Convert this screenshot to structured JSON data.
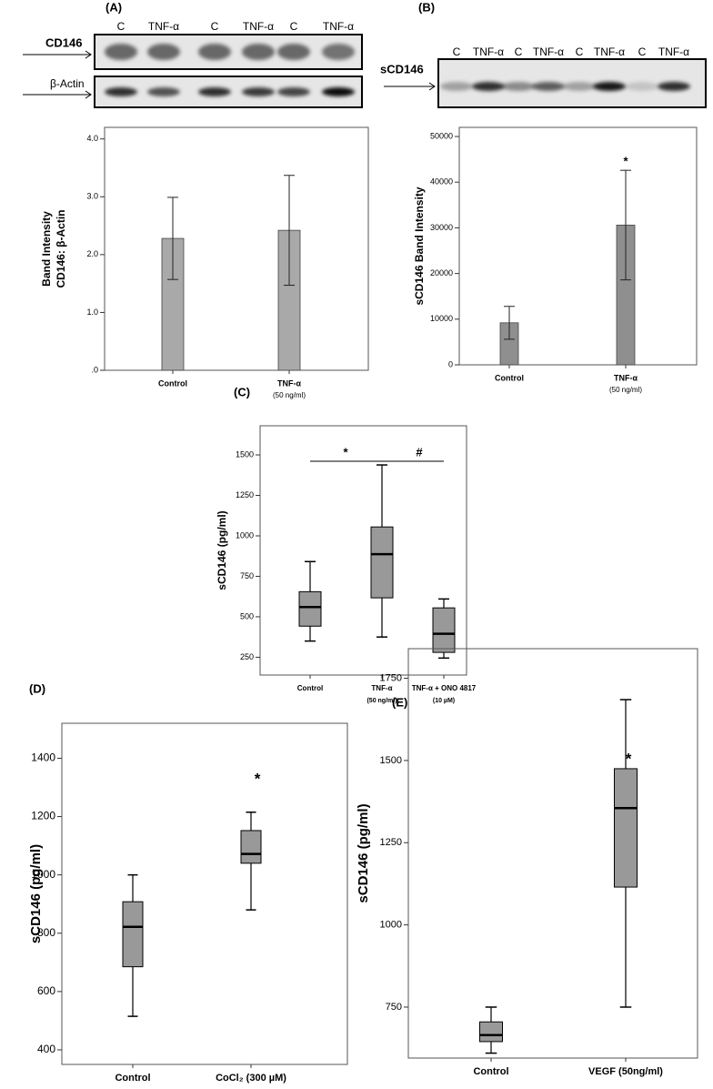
{
  "chart_data": [
    {
      "type": "bar",
      "title": "(A)",
      "blot": {
        "lanes": [
          "C",
          "TNF-α",
          "C",
          "TNF-α",
          "C",
          "TNF-α"
        ],
        "rows": [
          "CD146",
          "β-Actin"
        ]
      },
      "ylabel": [
        "Band Intensity",
        "CD146: β-Actin"
      ],
      "categories": [
        "Control",
        "TNF-α"
      ],
      "category_notes": [
        null,
        "(50 ng/ml)"
      ],
      "values": [
        2.28,
        2.42
      ],
      "errors": [
        0.71,
        0.95
      ],
      "color": "#a9a9a9",
      "ylim": [
        0,
        4.2
      ],
      "yticks": [
        {
          "value": 0,
          "label": ".0"
        },
        {
          "value": 1,
          "label": "1.0"
        },
        {
          "value": 2,
          "label": "2.0"
        },
        {
          "value": 3,
          "label": "3.0"
        },
        {
          "value": 4,
          "label": "4.0"
        }
      ]
    },
    {
      "type": "bar",
      "title": "(B)",
      "blot": {
        "lanes": [
          "C",
          "TNF-α",
          "C",
          "TNF-α",
          "C",
          "TNF-α",
          "C",
          "TNF-α"
        ],
        "rows": [
          "sCD146"
        ]
      },
      "ylabel": [
        "sCD146 Band Intensity"
      ],
      "categories": [
        "Control",
        "TNF-α"
      ],
      "category_notes": [
        null,
        "(50 ng/ml)"
      ],
      "values": [
        9200,
        30600
      ],
      "errors": [
        3600,
        12000
      ],
      "color": "#8f8f8f",
      "ylim": [
        0,
        52000
      ],
      "yticks": [
        0,
        10000,
        20000,
        30000,
        40000,
        50000
      ],
      "annotations": [
        {
          "text": "*"
        }
      ]
    },
    {
      "type": "box",
      "title": "(C)",
      "ylabel": [
        "sCD146 (pg/ml)"
      ],
      "categories": [
        "Control",
        "TNF-α",
        "TNF-α + ONO 4817"
      ],
      "category_notes": [
        null,
        "(50 ng/ml)",
        "(10 µM)"
      ],
      "min": [
        350,
        375,
        245
      ],
      "q1": [
        442,
        617,
        280
      ],
      "median": [
        560,
        887,
        395
      ],
      "q3": [
        655,
        1055,
        555
      ],
      "max": [
        841,
        1438,
        610
      ],
      "color": "#999999",
      "ylim": [
        140,
        1680
      ],
      "yticks": [
        250,
        500,
        750,
        1000,
        1250,
        1500
      ],
      "annotations": [
        {
          "text": "*"
        },
        {
          "text": "#"
        }
      ]
    },
    {
      "type": "box",
      "title": "(D)",
      "ylabel": [
        "sCD146 (pg/ml)"
      ],
      "categories": [
        "Control",
        "CoCl₂ (300 µM)"
      ],
      "min": [
        515,
        880
      ],
      "q1": [
        685,
        1040
      ],
      "median": [
        822,
        1072
      ],
      "q3": [
        908,
        1152
      ],
      "max": [
        1000,
        1215
      ],
      "color": "#999999",
      "ylim": [
        350,
        1520
      ],
      "yticks": [
        400,
        600,
        800,
        1000,
        1200,
        1400
      ],
      "annotations": [
        {
          "text": "*"
        }
      ]
    },
    {
      "type": "box",
      "title": "(E)",
      "ylabel": [
        "sCD146 (pg/ml)"
      ],
      "categories": [
        "Control",
        "VEGF (50ng/ml)"
      ],
      "min": [
        610,
        750
      ],
      "q1": [
        645,
        1115
      ],
      "median": [
        665,
        1355
      ],
      "q3": [
        705,
        1475
      ],
      "max": [
        750,
        1685
      ],
      "color": "#999999",
      "ylim": [
        595,
        1840
      ],
      "yticks": [
        750,
        1000,
        1250,
        1500,
        1750
      ],
      "annotations": [
        {
          "text": "*"
        }
      ]
    }
  ]
}
